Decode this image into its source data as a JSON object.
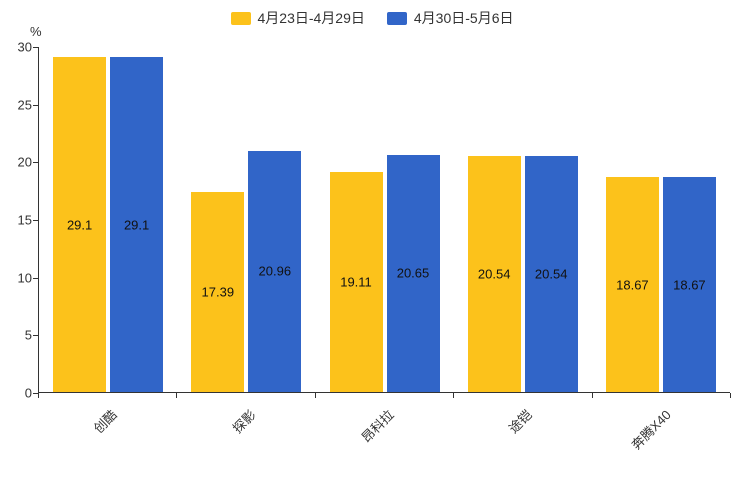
{
  "chart_data": {
    "type": "bar",
    "title": "",
    "xlabel": "",
    "ylabel": "%",
    "ylim": [
      0,
      30
    ],
    "yticks": [
      0,
      5,
      10,
      15,
      20,
      25,
      30
    ],
    "grid": false,
    "legend_position": "top-center",
    "categories": [
      "创酷",
      "探影",
      "昂科拉",
      "途铠",
      "奔腾X40"
    ],
    "series": [
      {
        "name": "4月23日-4月29日",
        "color": "#FCC21B",
        "values": [
          29.1,
          17.39,
          19.11,
          20.54,
          18.67
        ]
      },
      {
        "name": "4月30日-5月6日",
        "color": "#3165C8",
        "values": [
          29.1,
          20.96,
          20.65,
          20.54,
          18.67
        ]
      }
    ],
    "bar_label_color": "#111111",
    "axis_color": "#333333"
  }
}
